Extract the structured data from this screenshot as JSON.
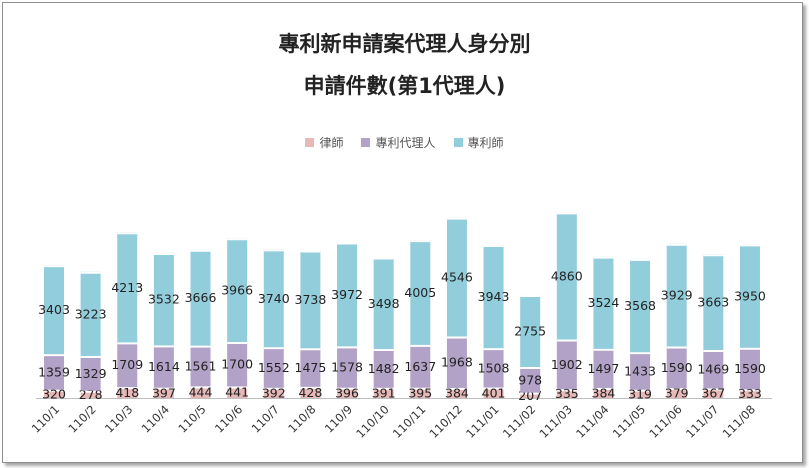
{
  "chart_data": {
    "type": "bar",
    "stacked": true,
    "title": "專利新申請案代理人身分別",
    "subtitle": "申請件數(第1代理人)",
    "legend_position": "top",
    "categories": [
      "110/1",
      "110/2",
      "110/3",
      "110/4",
      "110/5",
      "110/6",
      "110/7",
      "110/8",
      "110/9",
      "110/10",
      "110/11",
      "110/12",
      "111/01",
      "111/02",
      "111/03",
      "111/04",
      "111/05",
      "111/06",
      "111/07",
      "111/08"
    ],
    "series": [
      {
        "name": "律師",
        "color": "#e6b8b7",
        "values": [
          320,
          278,
          418,
          397,
          444,
          441,
          392,
          428,
          396,
          391,
          395,
          384,
          401,
          207,
          335,
          384,
          319,
          379,
          367,
          333
        ]
      },
      {
        "name": "專利代理人",
        "color": "#b3a2c7",
        "values": [
          1359,
          1329,
          1709,
          1614,
          1561,
          1700,
          1552,
          1475,
          1578,
          1482,
          1637,
          1968,
          1508,
          978,
          1902,
          1497,
          1433,
          1590,
          1469,
          1590
        ]
      },
      {
        "name": "專利師",
        "color": "#92cddc",
        "values": [
          3403,
          3223,
          4213,
          3532,
          3666,
          3966,
          3740,
          3738,
          3972,
          3498,
          4005,
          4546,
          3943,
          2755,
          4860,
          3524,
          3568,
          3929,
          3663,
          3950
        ]
      }
    ],
    "grid": false
  }
}
